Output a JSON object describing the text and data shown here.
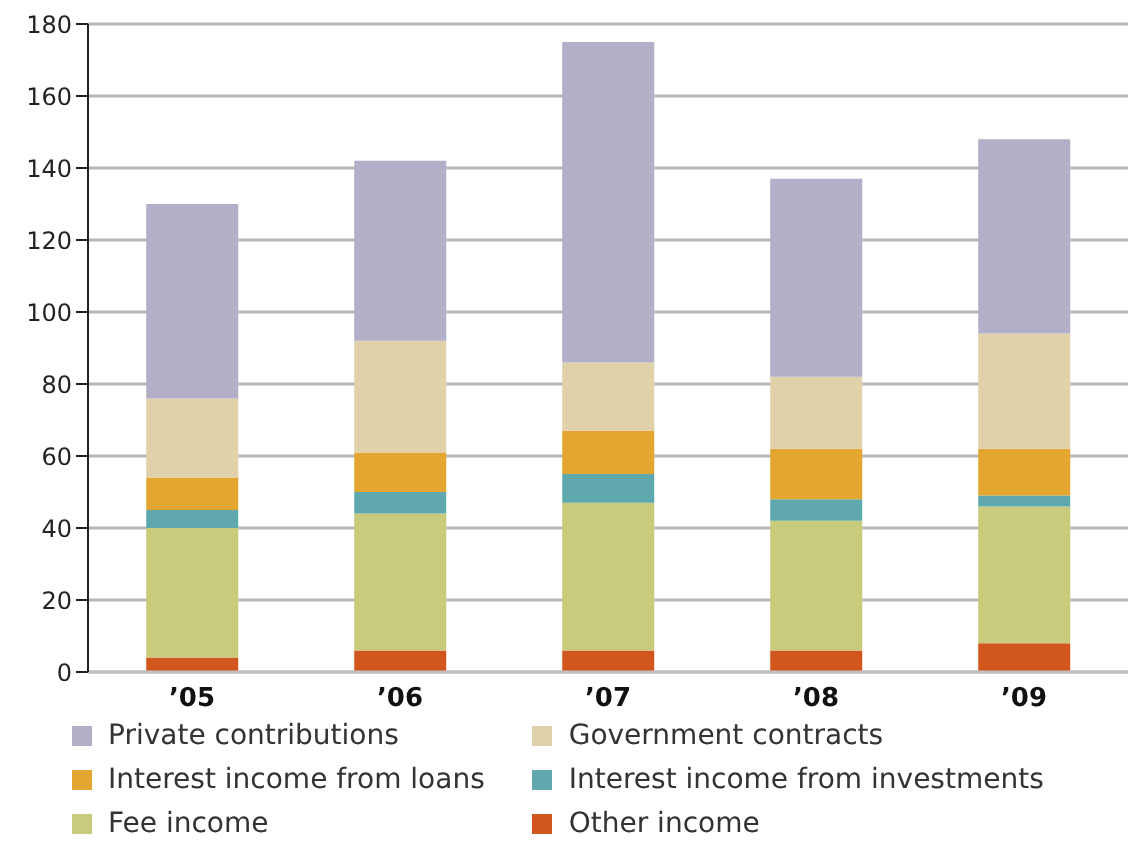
{
  "chart_data": {
    "type": "bar",
    "stacked": true,
    "categories": [
      "’05",
      "’06",
      "’07",
      "’08",
      "’09"
    ],
    "series": [
      {
        "name": "Other income",
        "color": "#d2571e",
        "values": [
          4,
          6,
          6,
          6,
          8
        ]
      },
      {
        "name": "Fee income",
        "color": "#c8cb7c",
        "values": [
          36,
          38,
          41,
          36,
          38
        ]
      },
      {
        "name": "Interest income from investments",
        "color": "#5fa8ad",
        "values": [
          5,
          6,
          8,
          6,
          3
        ]
      },
      {
        "name": "Interest income from loans",
        "color": "#e3a630",
        "values": [
          9,
          11,
          12,
          14,
          13
        ]
      },
      {
        "name": "Government contracts",
        "color": "#e0d1aa",
        "values": [
          22,
          31,
          19,
          20,
          32
        ]
      },
      {
        "name": "Private contributions",
        "color": "#b3afc9",
        "values": [
          54,
          50,
          89,
          55,
          54
        ]
      }
    ],
    "ylim": [
      0,
      180
    ],
    "yticks": [
      0,
      20,
      40,
      60,
      80,
      100,
      120,
      140,
      160,
      180
    ],
    "grid": "y",
    "legend": "bottom"
  }
}
